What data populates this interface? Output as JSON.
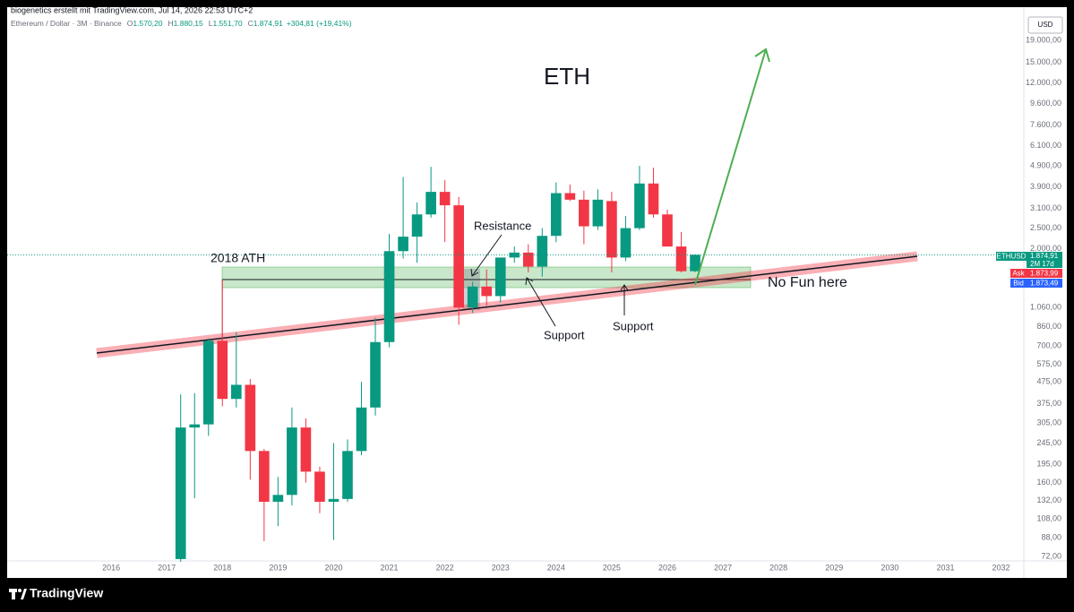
{
  "watermark": "biogenetics erstellt mit TradingView.com, Jul 14, 2026 22:53 UTC+2",
  "header": {
    "symbol": "Ethereum / Dollar · 3M · Binance",
    "legend": [
      {
        "key": "O",
        "value": "1.570,20"
      },
      {
        "key": "H",
        "value": "1.880,15"
      },
      {
        "key": "L",
        "value": "1.551,70"
      },
      {
        "key": "C",
        "value": "1.874,91"
      }
    ],
    "change": "+304,81 (+19,41%)"
  },
  "currency": "USD",
  "price_tags": {
    "symbol": "ETHUSD",
    "last": "1.874,91",
    "countdown": "2M 17d",
    "ask_label": "Ask",
    "ask": "1.873,99",
    "bid_label": "Bid",
    "bid": "1.873,49"
  },
  "annotations": {
    "title": "ETH",
    "ath": "2018 ATH",
    "resistance": "Resistance",
    "support_1": "Support",
    "support_2": "Support",
    "no_fun": "No Fun here"
  },
  "footer": {
    "brand": "TradingView"
  },
  "chart_data": {
    "type": "candlestick",
    "log_scale": true,
    "up_color": "#089981",
    "down_color": "#f23645",
    "x": [
      2017.25,
      2017.5,
      2017.75,
      2018,
      2018.25,
      2018.5,
      2018.75,
      2019,
      2019.25,
      2019.5,
      2019.75,
      2020,
      2020.25,
      2020.5,
      2020.75,
      2021,
      2021.25,
      2021.5,
      2021.75,
      2022,
      2022.25,
      2022.5,
      2022.75,
      2023,
      2023.25,
      2023.5,
      2023.75,
      2024,
      2024.25,
      2024.5,
      2024.75,
      2025,
      2025.25,
      2025.5,
      2025.75,
      2026,
      2026.25,
      2026.5
    ],
    "open": [
      70,
      290,
      300,
      740,
      395,
      460,
      225,
      130,
      140,
      290,
      180,
      130,
      134,
      225,
      360,
      730,
      1950,
      2280,
      2900,
      3700,
      3200,
      1060,
      1330,
      1200,
      1820,
      1920,
      1650,
      2300,
      3650,
      3400,
      2550,
      3350,
      1820,
      2500,
      4050,
      2900,
      2050,
      1570.2
    ],
    "high": [
      415,
      420,
      760,
      1420,
      810,
      490,
      230,
      170,
      360,
      320,
      190,
      245,
      255,
      475,
      950,
      2350,
      4350,
      3300,
      4850,
      4200,
      3500,
      1400,
      1600,
      1600,
      2050,
      2100,
      2500,
      4100,
      4000,
      3750,
      3800,
      3700,
      2850,
      4900,
      4800,
      3050,
      2400,
      1880.15
    ],
    "low": [
      68,
      135,
      265,
      365,
      360,
      165,
      85,
      100,
      125,
      160,
      115,
      86,
      130,
      215,
      330,
      690,
      1800,
      1720,
      2800,
      2150,
      880,
      1000,
      1080,
      1120,
      1720,
      1550,
      1480,
      2150,
      3350,
      2100,
      2450,
      1550,
      1750,
      2450,
      2800,
      2050,
      1550,
      1551.7
    ],
    "close": [
      290,
      300,
      740,
      395,
      460,
      225,
      130,
      140,
      290,
      180,
      130,
      134,
      225,
      360,
      730,
      1950,
      2280,
      2900,
      3700,
      3200,
      1060,
      1330,
      1200,
      1820,
      1920,
      1650,
      2300,
      3650,
      3400,
      2550,
      3400,
      1820,
      2500,
      4050,
      2900,
      2050,
      1570,
      1874.91
    ],
    "xlim": [
      2014.13,
      2032.41
    ],
    "xticks": [
      2016,
      2017,
      2018,
      2019,
      2020,
      2021,
      2022,
      2023,
      2024,
      2025,
      2026,
      2027,
      2028,
      2029,
      2030,
      2031,
      2032
    ],
    "ylim": [
      66,
      26700
    ],
    "yticks": [
      {
        "value": 19000,
        "label": "19.000,00"
      },
      {
        "value": 15000,
        "label": "15.000,00"
      },
      {
        "value": 12000,
        "label": "12.000,00"
      },
      {
        "value": 9600,
        "label": "9.600,00"
      },
      {
        "value": 7600,
        "label": "7.600,00"
      },
      {
        "value": 6100,
        "label": "6.100,00"
      },
      {
        "value": 4900,
        "label": "4.900,00"
      },
      {
        "value": 3900,
        "label": "3.900,00"
      },
      {
        "value": 3100,
        "label": "3.100,00"
      },
      {
        "value": 2500,
        "label": "2.500,00"
      },
      {
        "value": 2000,
        "label": "2.000,00"
      },
      {
        "value": 1060,
        "label": "1.060,00"
      },
      {
        "value": 860,
        "label": "860,00"
      },
      {
        "value": 700,
        "label": "700,00"
      },
      {
        "value": 575,
        "label": "575,00"
      },
      {
        "value": 475,
        "label": "475,00"
      },
      {
        "value": 375,
        "label": "375,00"
      },
      {
        "value": 305,
        "label": "305,00"
      },
      {
        "value": 245,
        "label": "245,00"
      },
      {
        "value": 195,
        "label": "195,00"
      },
      {
        "value": 160,
        "label": "160,00"
      },
      {
        "value": 132,
        "label": "132,00"
      },
      {
        "value": 108,
        "label": "108,00"
      },
      {
        "value": 88,
        "label": "88,00"
      },
      {
        "value": 72,
        "label": "72,00"
      }
    ]
  }
}
